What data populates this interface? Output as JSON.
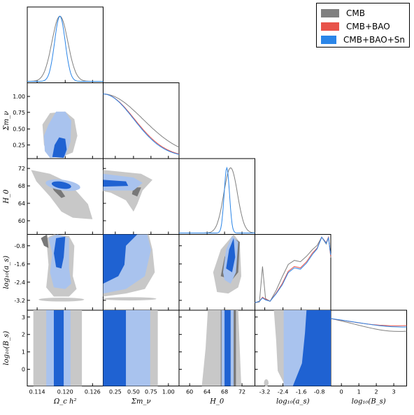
{
  "chart_data": {
    "type": "triangle",
    "parameters": [
      {
        "label": "Ω_c h²",
        "ticks": [
          "0.114",
          "0.120",
          "0.126"
        ]
      },
      {
        "label": "Σm_ν",
        "ticks": [
          "0.25",
          "0.50",
          "0.75",
          "1.00"
        ]
      },
      {
        "label": "H_0",
        "ticks": [
          "60",
          "64",
          "68",
          "72"
        ]
      },
      {
        "label": "log₁₀(a_s)",
        "ticks": [
          "-3.2",
          "-2.4",
          "-1.6",
          "-0.8"
        ]
      },
      {
        "label": "log₁₀(B_s)",
        "ticks": [
          "0",
          "1",
          "2",
          "3"
        ]
      }
    ],
    "y_axis_ticks": {
      "Σm_ν": [
        "0.25",
        "0.50",
        "0.75",
        "1.00"
      ],
      "H_0": [
        "60",
        "64",
        "68",
        "72"
      ],
      "log₁₀(a_s)": [
        "-3.2",
        "-2.4",
        "-1.6",
        "-0.8"
      ],
      "log₁₀(B_s)": [
        "0",
        "1",
        "2",
        "3"
      ]
    },
    "series": [
      {
        "name": "CMB",
        "color": "#808080",
        "fill_outer": "#c8c8c8",
        "fill_inner": "#787878"
      },
      {
        "name": "CMB+BAO",
        "color": "#e8534a"
      },
      {
        "name": "CMB+BAO+Sn",
        "color": "#2a85e8",
        "fill_outer": "#a9c3ee",
        "fill_inner": "#1f62d2"
      }
    ],
    "marginal_peaks": {
      "Ω_c h²": {
        "CMB": 0.1185,
        "CMB+BAO+Sn": 0.1187
      },
      "Σm_ν": {
        "CMB": 0.0,
        "CMB+BAO+Sn": 0.0
      },
      "H_0": {
        "CMB": 68.2,
        "CMB+BAO+Sn": 67.8
      },
      "log₁₀(a_s)": {
        "CMB": -0.55,
        "CMB+BAO+Sn": -0.55
      }
    },
    "legend_placement": "top-right",
    "grid": false
  }
}
